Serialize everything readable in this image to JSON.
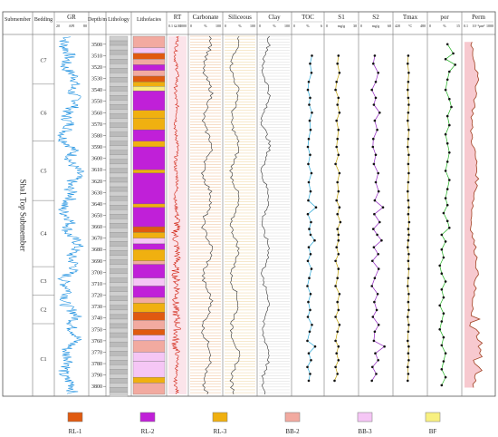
{
  "chart_data": {
    "type": "well-log",
    "columns": [
      {
        "key": "submember",
        "title": "Submember"
      },
      {
        "key": "bedding",
        "title": "Bedding"
      },
      {
        "key": "gr",
        "title": "GR",
        "unit": "API",
        "min": "20",
        "max": "80"
      },
      {
        "key": "depth",
        "title": "Depth/m"
      },
      {
        "key": "lithology",
        "title": "Lithology"
      },
      {
        "key": "lithofacies",
        "title": "Lithofacies"
      },
      {
        "key": "rt",
        "title": "RT",
        "unit": "Ω.M",
        "min": "0.1",
        "max": "1000"
      },
      {
        "key": "carbonate",
        "title": "Carbonate",
        "unit": "%",
        "min": "0",
        "max": "100"
      },
      {
        "key": "siliceous",
        "title": "Siliceous",
        "unit": "%",
        "min": "0",
        "max": "100"
      },
      {
        "key": "clay",
        "title": "Clay",
        "unit": "%",
        "min": "0",
        "max": "100"
      },
      {
        "key": "toc",
        "title": "TOC",
        "unit": "%",
        "min": "0",
        "max": "6"
      },
      {
        "key": "s1",
        "title": "S1",
        "unit": "mg/g",
        "min": "0",
        "max": "30"
      },
      {
        "key": "s2",
        "title": "S2",
        "unit": "mg/g",
        "min": "0",
        "max": "60"
      },
      {
        "key": "tmax",
        "title": "Tmax",
        "unit": "°C",
        "min": "420",
        "max": "480"
      },
      {
        "key": "por",
        "title": "por",
        "unit": "%",
        "min": "0",
        "max": "15"
      },
      {
        "key": "perm",
        "title": "Perm",
        "unit": "10⁻³μm²",
        "min": "0.1",
        "max": "1000"
      }
    ],
    "depth_range": [
      3493,
      3807
    ],
    "depth_ticks": [
      3500,
      3510,
      3520,
      3530,
      3540,
      3550,
      3560,
      3570,
      3580,
      3590,
      3600,
      3610,
      3620,
      3630,
      3640,
      3650,
      3660,
      3670,
      3680,
      3690,
      3700,
      3710,
      3720,
      3730,
      3740,
      3750,
      3760,
      3770,
      3780,
      3790,
      3800
    ],
    "submember_label": "Sha1 Top Submember",
    "beddings": [
      {
        "name": "C7",
        "top": 3493,
        "bottom": 3535
      },
      {
        "name": "C6",
        "top": 3535,
        "bottom": 3585
      },
      {
        "name": "C5",
        "top": 3585,
        "bottom": 3637
      },
      {
        "name": "C4",
        "top": 3637,
        "bottom": 3695
      },
      {
        "name": "C3",
        "top": 3695,
        "bottom": 3720
      },
      {
        "name": "C2",
        "top": 3720,
        "bottom": 3745
      },
      {
        "name": "C1",
        "top": 3745,
        "bottom": 3807
      }
    ],
    "lithofacies_layers": [
      {
        "top": 3493,
        "bottom": 3503,
        "facies": "BB-2"
      },
      {
        "top": 3503,
        "bottom": 3508,
        "facies": "BB-3"
      },
      {
        "top": 3508,
        "bottom": 3513,
        "facies": "RL-1"
      },
      {
        "top": 3513,
        "bottom": 3518,
        "facies": "BB-2"
      },
      {
        "top": 3518,
        "bottom": 3523,
        "facies": "RL-2"
      },
      {
        "top": 3523,
        "bottom": 3528,
        "facies": "BB-2"
      },
      {
        "top": 3528,
        "bottom": 3533,
        "facies": "RL-1"
      },
      {
        "top": 3533,
        "bottom": 3537,
        "facies": "RL-3"
      },
      {
        "top": 3537,
        "bottom": 3541,
        "facies": "BF"
      },
      {
        "top": 3541,
        "bottom": 3558,
        "facies": "RL-2"
      },
      {
        "top": 3558,
        "bottom": 3565,
        "facies": "RL-3"
      },
      {
        "top": 3565,
        "bottom": 3575,
        "facies": "RL-3"
      },
      {
        "top": 3575,
        "bottom": 3585,
        "facies": "RL-2"
      },
      {
        "top": 3585,
        "bottom": 3590,
        "facies": "RL-3"
      },
      {
        "top": 3590,
        "bottom": 3610,
        "facies": "RL-2"
      },
      {
        "top": 3610,
        "bottom": 3613,
        "facies": "RL-3"
      },
      {
        "top": 3613,
        "bottom": 3640,
        "facies": "RL-2"
      },
      {
        "top": 3640,
        "bottom": 3643,
        "facies": "RL-3"
      },
      {
        "top": 3643,
        "bottom": 3660,
        "facies": "RL-2"
      },
      {
        "top": 3660,
        "bottom": 3665,
        "facies": "RL-1"
      },
      {
        "top": 3665,
        "bottom": 3670,
        "facies": "RL-3"
      },
      {
        "top": 3670,
        "bottom": 3675,
        "facies": "BB-3"
      },
      {
        "top": 3675,
        "bottom": 3680,
        "facies": "RL-2"
      },
      {
        "top": 3680,
        "bottom": 3690,
        "facies": "RL-3"
      },
      {
        "top": 3690,
        "bottom": 3693,
        "facies": "BB-2"
      },
      {
        "top": 3693,
        "bottom": 3705,
        "facies": "RL-2"
      },
      {
        "top": 3705,
        "bottom": 3712,
        "facies": "BB-3"
      },
      {
        "top": 3712,
        "bottom": 3722,
        "facies": "RL-2"
      },
      {
        "top": 3722,
        "bottom": 3727,
        "facies": "BB-2"
      },
      {
        "top": 3727,
        "bottom": 3735,
        "facies": "RL-3"
      },
      {
        "top": 3735,
        "bottom": 3742,
        "facies": "RL-1"
      },
      {
        "top": 3742,
        "bottom": 3750,
        "facies": "BB-2"
      },
      {
        "top": 3750,
        "bottom": 3755,
        "facies": "RL-1"
      },
      {
        "top": 3755,
        "bottom": 3760,
        "facies": "BB-3"
      },
      {
        "top": 3760,
        "bottom": 3770,
        "facies": "BB-2"
      },
      {
        "top": 3770,
        "bottom": 3778,
        "facies": "BB-3"
      },
      {
        "top": 3778,
        "bottom": 3792,
        "facies": "BB-3"
      },
      {
        "top": 3792,
        "bottom": 3797,
        "facies": "RL-3"
      },
      {
        "top": 3797,
        "bottom": 3807,
        "facies": "BB-2"
      }
    ],
    "series": {
      "toc": {
        "color": "#28a8d8",
        "points": [
          [
            3510,
            3.9
          ],
          [
            3517,
            3.5
          ],
          [
            3525,
            3.8
          ],
          [
            3533,
            3.2
          ],
          [
            3540,
            3.0
          ],
          [
            3547,
            3.5
          ],
          [
            3553,
            3.3
          ],
          [
            3560,
            3.9
          ],
          [
            3567,
            3.4
          ],
          [
            3575,
            3.6
          ],
          [
            3583,
            3.2
          ],
          [
            3590,
            3.0
          ],
          [
            3597,
            3.5
          ],
          [
            3605,
            3.1
          ],
          [
            3613,
            3.8
          ],
          [
            3621,
            3.2
          ],
          [
            3629,
            3.6
          ],
          [
            3637,
            3.1
          ],
          [
            3643,
            4.8
          ],
          [
            3649,
            3.0
          ],
          [
            3656,
            3.7
          ],
          [
            3662,
            3.3
          ],
          [
            3667,
            3.6
          ],
          [
            3672,
            4.5
          ],
          [
            3678,
            3.2
          ],
          [
            3684,
            3.6
          ],
          [
            3690,
            3.0
          ],
          [
            3697,
            3.8
          ],
          [
            3705,
            3.3
          ],
          [
            3712,
            2.9
          ],
          [
            3719,
            3.6
          ],
          [
            3726,
            3.1
          ],
          [
            3733,
            3.5
          ],
          [
            3739,
            3.0
          ],
          [
            3746,
            3.9
          ],
          [
            3752,
            3.4
          ],
          [
            3760,
            2.9
          ],
          [
            3765,
            4.6
          ],
          [
            3771,
            3.2
          ],
          [
            3777,
            3.7
          ],
          [
            3783,
            2.9
          ],
          [
            3789,
            3.5
          ],
          [
            3795,
            3.2
          ]
        ]
      },
      "s1": {
        "color": "#c0a000",
        "points": [
          [
            3510,
            12
          ],
          [
            3517,
            11
          ],
          [
            3525,
            13
          ],
          [
            3533,
            10
          ],
          [
            3540,
            9
          ],
          [
            3547,
            12
          ],
          [
            3553,
            11
          ],
          [
            3560,
            13
          ],
          [
            3567,
            10
          ],
          [
            3575,
            12
          ],
          [
            3583,
            11
          ],
          [
            3590,
            10
          ],
          [
            3597,
            12
          ],
          [
            3605,
            9
          ],
          [
            3613,
            13
          ],
          [
            3621,
            11
          ],
          [
            3629,
            12
          ],
          [
            3637,
            10
          ],
          [
            3643,
            13
          ],
          [
            3649,
            11
          ],
          [
            3656,
            14
          ],
          [
            3662,
            11
          ],
          [
            3667,
            12
          ],
          [
            3672,
            12
          ],
          [
            3678,
            10
          ],
          [
            3684,
            12
          ],
          [
            3690,
            9
          ],
          [
            3697,
            12
          ],
          [
            3705,
            11
          ],
          [
            3712,
            9
          ],
          [
            3719,
            13
          ],
          [
            3726,
            11
          ],
          [
            3733,
            12
          ],
          [
            3739,
            9
          ],
          [
            3746,
            13
          ],
          [
            3752,
            11
          ],
          [
            3760,
            9
          ],
          [
            3765,
            12
          ],
          [
            3771,
            10
          ],
          [
            3777,
            12
          ],
          [
            3783,
            9
          ],
          [
            3789,
            11
          ],
          [
            3795,
            8
          ]
        ]
      },
      "s2": {
        "color": "#9020c0",
        "points": [
          [
            3510,
            28
          ],
          [
            3517,
            25
          ],
          [
            3525,
            35
          ],
          [
            3533,
            30
          ],
          [
            3540,
            22
          ],
          [
            3547,
            30
          ],
          [
            3553,
            26
          ],
          [
            3560,
            38
          ],
          [
            3567,
            28
          ],
          [
            3575,
            33
          ],
          [
            3583,
            25
          ],
          [
            3590,
            24
          ],
          [
            3597,
            30
          ],
          [
            3605,
            26
          ],
          [
            3613,
            35
          ],
          [
            3621,
            30
          ],
          [
            3629,
            36
          ],
          [
            3637,
            28
          ],
          [
            3643,
            45
          ],
          [
            3649,
            27
          ],
          [
            3656,
            38
          ],
          [
            3662,
            25
          ],
          [
            3667,
            33
          ],
          [
            3672,
            42
          ],
          [
            3678,
            26
          ],
          [
            3684,
            35
          ],
          [
            3690,
            23
          ],
          [
            3697,
            36
          ],
          [
            3705,
            28
          ],
          [
            3712,
            22
          ],
          [
            3719,
            34
          ],
          [
            3726,
            27
          ],
          [
            3733,
            32
          ],
          [
            3739,
            24
          ],
          [
            3746,
            36
          ],
          [
            3752,
            28
          ],
          [
            3760,
            26
          ],
          [
            3765,
            48
          ],
          [
            3771,
            29
          ],
          [
            3777,
            35
          ],
          [
            3783,
            23
          ],
          [
            3789,
            31
          ],
          [
            3795,
            22
          ]
        ]
      },
      "tmax": {
        "color": "#b09000",
        "points": [
          [
            3510,
            446
          ],
          [
            3517,
            445
          ],
          [
            3525,
            447
          ],
          [
            3533,
            446
          ],
          [
            3540,
            445
          ],
          [
            3547,
            446
          ],
          [
            3553,
            447
          ],
          [
            3560,
            446
          ],
          [
            3567,
            445
          ],
          [
            3575,
            447
          ],
          [
            3583,
            446
          ],
          [
            3590,
            445
          ],
          [
            3597,
            447
          ],
          [
            3605,
            446
          ],
          [
            3613,
            447
          ],
          [
            3621,
            446
          ],
          [
            3629,
            445
          ],
          [
            3637,
            446
          ],
          [
            3643,
            447
          ],
          [
            3649,
            446
          ],
          [
            3656,
            448
          ],
          [
            3662,
            446
          ],
          [
            3667,
            447
          ],
          [
            3672,
            446
          ],
          [
            3678,
            445
          ],
          [
            3684,
            447
          ],
          [
            3690,
            446
          ],
          [
            3697,
            447
          ],
          [
            3705,
            446
          ],
          [
            3712,
            445
          ],
          [
            3719,
            447
          ],
          [
            3726,
            446
          ],
          [
            3733,
            447
          ],
          [
            3739,
            445
          ],
          [
            3746,
            447
          ],
          [
            3752,
            446
          ],
          [
            3760,
            445
          ],
          [
            3765,
            447
          ],
          [
            3771,
            446
          ],
          [
            3777,
            447
          ],
          [
            3783,
            445
          ],
          [
            3789,
            446
          ],
          [
            3795,
            445
          ]
        ]
      },
      "por": {
        "color": "#20b020",
        "points": [
          [
            3500,
            9
          ],
          [
            3508,
            12
          ],
          [
            3513,
            8
          ],
          [
            3518,
            13
          ],
          [
            3524,
            10
          ],
          [
            3531,
            9
          ],
          [
            3540,
            8
          ],
          [
            3548,
            10
          ],
          [
            3555,
            11
          ],
          [
            3563,
            9
          ],
          [
            3571,
            10
          ],
          [
            3579,
            8
          ],
          [
            3587,
            9
          ],
          [
            3595,
            10
          ],
          [
            3603,
            9
          ],
          [
            3611,
            8
          ],
          [
            3619,
            10
          ],
          [
            3627,
            9
          ],
          [
            3635,
            8
          ],
          [
            3641,
            9
          ],
          [
            3648,
            7
          ],
          [
            3655,
            9
          ],
          [
            3661,
            10
          ],
          [
            3667,
            6
          ],
          [
            3673,
            8
          ],
          [
            3680,
            6
          ],
          [
            3687,
            7
          ],
          [
            3694,
            5
          ],
          [
            3701,
            6
          ],
          [
            3708,
            8
          ],
          [
            3715,
            6
          ],
          [
            3722,
            7
          ],
          [
            3729,
            5
          ],
          [
            3736,
            7
          ],
          [
            3743,
            6
          ],
          [
            3750,
            5
          ],
          [
            3757,
            7
          ],
          [
            3764,
            6
          ],
          [
            3771,
            8
          ],
          [
            3778,
            7
          ],
          [
            3785,
            6
          ],
          [
            3792,
            8
          ],
          [
            3799,
            6
          ]
        ]
      }
    },
    "legend": [
      {
        "label": "RL-1",
        "color": "#e05a10"
      },
      {
        "label": "RL-2",
        "color": "#c020d8"
      },
      {
        "label": "RL-3",
        "color": "#f0b010"
      },
      {
        "label": "BB-2",
        "color": "#f2aaa0"
      },
      {
        "label": "BB-3",
        "color": "#f5c6f5"
      },
      {
        "label": "BF",
        "color": "#f8f080"
      }
    ]
  }
}
